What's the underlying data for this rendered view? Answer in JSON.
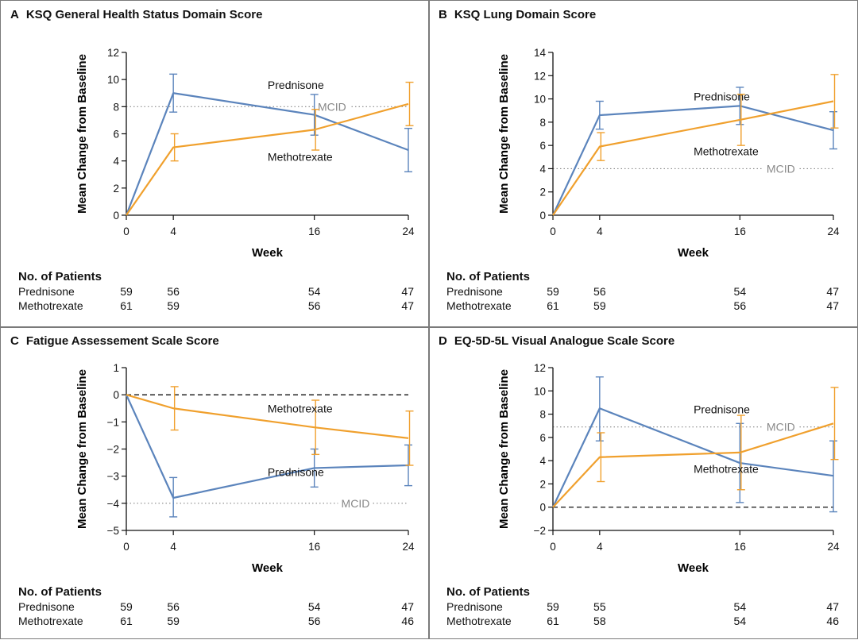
{
  "colors": {
    "prednisone": "#5b84bc",
    "methotrexate": "#f0a02d",
    "axis": "#111111",
    "mcid": "#888888",
    "border": "#7a7a7a"
  },
  "patients_title": "No. of Patients",
  "chart_data": [
    {
      "type": "line",
      "letter": "A",
      "title": "KSQ General Health Status Domain Score",
      "xlabel": "Week",
      "ylabel": "Mean Change from Baseline",
      "categories": [
        "0",
        "4",
        "16",
        "24"
      ],
      "ylim": [
        0,
        12
      ],
      "yticks": [
        0,
        2,
        4,
        6,
        8,
        10,
        12
      ],
      "ytick_labels": [
        "0",
        "2",
        "4",
        "6",
        "8",
        "10",
        "12"
      ],
      "zero_dashed": false,
      "mcid": {
        "value": 8,
        "label": "MCID",
        "label_at": 17.5
      },
      "series": [
        {
          "name": "Prednisone",
          "color": "#5b84bc",
          "values": [
            0,
            9.0,
            7.4,
            4.8
          ],
          "err_low": [
            0,
            7.6,
            5.9,
            3.2
          ],
          "err_high": [
            0,
            10.4,
            8.9,
            6.4
          ],
          "label_at": [
            10,
            9.6
          ]
        },
        {
          "name": "Methotrexate",
          "color": "#f0a02d",
          "values": [
            0,
            5.0,
            6.3,
            8.2
          ],
          "err_low": [
            0,
            4.0,
            4.8,
            6.6
          ],
          "err_high": [
            0,
            6.0,
            7.8,
            9.8
          ],
          "label_at": [
            10,
            4.3
          ]
        }
      ],
      "patients": [
        {
          "name": "Prednisone",
          "counts": [
            "59",
            "56",
            "54",
            "47"
          ]
        },
        {
          "name": "Methotrexate",
          "counts": [
            "61",
            "59",
            "56",
            "47"
          ]
        }
      ]
    },
    {
      "type": "line",
      "letter": "B",
      "title": "KSQ Lung Domain Score",
      "xlabel": "Week",
      "ylabel": "Mean Change from Baseline",
      "categories": [
        "0",
        "4",
        "16",
        "24"
      ],
      "ylim": [
        0,
        14
      ],
      "yticks": [
        0,
        2,
        4,
        6,
        8,
        10,
        12,
        14
      ],
      "ytick_labels": [
        "0",
        "2",
        "4",
        "6",
        "8",
        "10",
        "12",
        "14"
      ],
      "zero_dashed": false,
      "mcid": {
        "value": 4,
        "label": "MCID",
        "label_at": 19.5
      },
      "series": [
        {
          "name": "Prednisone",
          "color": "#5b84bc",
          "values": [
            0,
            8.6,
            9.4,
            7.3
          ],
          "err_low": [
            0,
            7.4,
            7.8,
            5.7
          ],
          "err_high": [
            0,
            9.8,
            11.0,
            8.9
          ],
          "label_at": [
            10,
            10.2
          ]
        },
        {
          "name": "Methotrexate",
          "color": "#f0a02d",
          "values": [
            0,
            5.9,
            8.2,
            9.8
          ],
          "err_low": [
            0,
            4.7,
            6.0,
            7.5
          ],
          "err_high": [
            0,
            7.1,
            10.4,
            12.1
          ],
          "label_at": [
            10,
            5.5
          ]
        }
      ],
      "patients": [
        {
          "name": "Prednisone",
          "counts": [
            "59",
            "56",
            "54",
            "47"
          ]
        },
        {
          "name": "Methotrexate",
          "counts": [
            "61",
            "59",
            "56",
            "47"
          ]
        }
      ]
    },
    {
      "type": "line",
      "letter": "C",
      "title": "Fatigue Assessement Scale Score",
      "xlabel": "Week",
      "ylabel": "Mean Change from Baseline",
      "categories": [
        "0",
        "4",
        "16",
        "24"
      ],
      "ylim": [
        -5,
        1
      ],
      "yticks": [
        -5,
        -4,
        -3,
        -2,
        -1,
        0,
        1
      ],
      "ytick_labels": [
        "−5",
        "−4",
        "−3",
        "−2",
        "−1",
        "0",
        "1"
      ],
      "zero_dashed": true,
      "mcid": {
        "value": -4,
        "label": "MCID",
        "label_at": 19.5
      },
      "series": [
        {
          "name": "Prednisone",
          "color": "#5b84bc",
          "values": [
            0,
            -3.8,
            -2.7,
            -2.6
          ],
          "err_low": [
            0,
            -4.5,
            -3.4,
            -3.35
          ],
          "err_high": [
            0,
            -3.05,
            -2.0,
            -1.85
          ],
          "label_at": [
            10,
            -2.85
          ]
        },
        {
          "name": "Methotrexate",
          "color": "#f0a02d",
          "values": [
            0,
            -0.5,
            -1.2,
            -1.6
          ],
          "err_low": [
            0,
            -1.3,
            -2.2,
            -2.6
          ],
          "err_high": [
            0,
            0.3,
            -0.2,
            -0.6
          ],
          "label_at": [
            10,
            -0.5
          ]
        }
      ],
      "patients": [
        {
          "name": "Prednisone",
          "counts": [
            "59",
            "56",
            "54",
            "47"
          ]
        },
        {
          "name": "Methotrexate",
          "counts": [
            "61",
            "59",
            "56",
            "46"
          ]
        }
      ]
    },
    {
      "type": "line",
      "letter": "D",
      "title": "EQ-5D-5L Visual Analogue Scale Score",
      "xlabel": "Week",
      "ylabel": "Mean Change from Baseline",
      "categories": [
        "0",
        "4",
        "16",
        "24"
      ],
      "ylim": [
        -2,
        12
      ],
      "yticks": [
        -2,
        0,
        2,
        4,
        6,
        8,
        10,
        12
      ],
      "ytick_labels": [
        "−2",
        "0",
        "2",
        "4",
        "6",
        "8",
        "10",
        "12"
      ],
      "zero_dashed": true,
      "mcid": {
        "value": 6.9,
        "label": "MCID",
        "label_at": 19.5
      },
      "series": [
        {
          "name": "Prednisone",
          "color": "#5b84bc",
          "values": [
            0,
            8.5,
            3.8,
            2.7
          ],
          "err_low": [
            0,
            5.7,
            0.4,
            -0.4
          ],
          "err_high": [
            0,
            11.2,
            7.2,
            5.7
          ],
          "label_at": [
            10,
            8.4
          ]
        },
        {
          "name": "Methotrexate",
          "color": "#f0a02d",
          "values": [
            0,
            4.3,
            4.7,
            7.2
          ],
          "err_low": [
            0,
            2.2,
            1.5,
            4.1
          ],
          "err_high": [
            0,
            6.4,
            7.9,
            10.3
          ],
          "label_at": [
            10,
            3.3
          ]
        }
      ],
      "patients": [
        {
          "name": "Prednisone",
          "counts": [
            "59",
            "55",
            "54",
            "47"
          ]
        },
        {
          "name": "Methotrexate",
          "counts": [
            "61",
            "58",
            "54",
            "46"
          ]
        }
      ]
    }
  ]
}
